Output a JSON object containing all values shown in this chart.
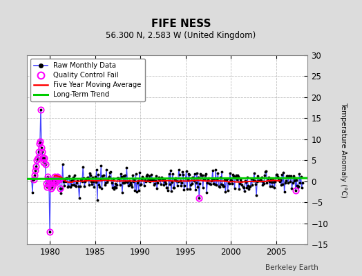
{
  "title": "FIFE NESS",
  "subtitle": "56.300 N, 2.583 W (United Kingdom)",
  "ylabel": "Temperature Anomaly (°C)",
  "attribution": "Berkeley Earth",
  "xlim": [
    1977.5,
    2008.5
  ],
  "ylim": [
    -15,
    30
  ],
  "yticks": [
    -15,
    -10,
    -5,
    0,
    5,
    10,
    15,
    20,
    25,
    30
  ],
  "xticks": [
    1980,
    1985,
    1990,
    1995,
    2000,
    2005
  ],
  "background_color": "#dcdcdc",
  "plot_bg_color": "#ffffff",
  "grid_color": "#b0b0b0",
  "raw_color": "#4444ff",
  "raw_marker_color": "#000000",
  "qc_fail_color": "#ff00ff",
  "moving_avg_color": "#ff0000",
  "trend_color": "#00cc00",
  "trend_x": [
    1977.5,
    2008.5
  ],
  "trend_y": [
    0.55,
    0.75
  ],
  "start_year": 1978.0,
  "end_year": 2007.917,
  "seed": 17
}
